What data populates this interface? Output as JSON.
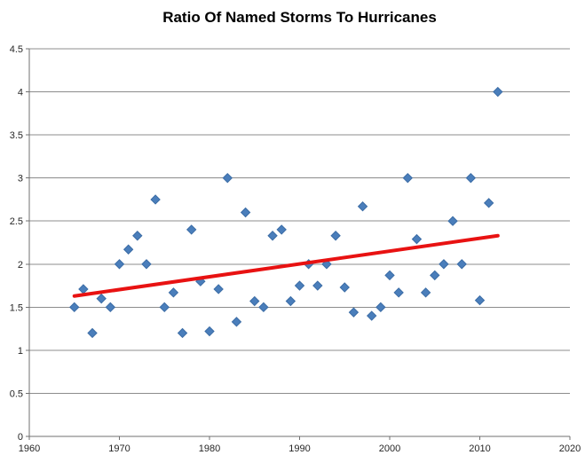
{
  "page": {
    "background": "#FFFFFF"
  },
  "chart_data": {
    "type": "scatter",
    "title": "Ratio Of Named Storms To Hurricanes",
    "xlabel": "",
    "ylabel": "",
    "xlim": [
      1960,
      2020
    ],
    "ylim": [
      0,
      4.5
    ],
    "x_ticks": [
      1960,
      1970,
      1980,
      1990,
      2000,
      2010,
      2020
    ],
    "x_tick_labels": [
      "1960",
      "1970",
      "1980",
      "1990",
      "2000",
      "2010",
      "2020"
    ],
    "y_ticks": [
      0,
      0.5,
      1,
      1.5,
      2,
      2.5,
      3,
      3.5,
      4,
      4.5
    ],
    "y_tick_labels": [
      "0",
      "0.5",
      "1",
      "1.5",
      "2",
      "2.5",
      "3",
      "3.5",
      "4",
      "4.5"
    ],
    "grid": "horizontal-only",
    "legend": "none",
    "marker": "diamond",
    "marker_color": "#4A7EBB",
    "marker_edge_color": "#3B6CA5",
    "marker_size": 10,
    "grid_color": "#8C8C8C",
    "axis_color": "#707070",
    "tick_label_color": "#262626",
    "title_color": "#000000",
    "series": [
      {
        "name": "Named storms to hurricanes ratio",
        "points": [
          [
            1965,
            1.5
          ],
          [
            1966,
            1.71
          ],
          [
            1967,
            1.2
          ],
          [
            1968,
            1.6
          ],
          [
            1969,
            1.5
          ],
          [
            1970,
            2.0
          ],
          [
            1971,
            2.17
          ],
          [
            1972,
            2.33
          ],
          [
            1973,
            2.0
          ],
          [
            1974,
            2.75
          ],
          [
            1975,
            1.5
          ],
          [
            1976,
            1.67
          ],
          [
            1977,
            1.2
          ],
          [
            1978,
            2.4
          ],
          [
            1979,
            1.8
          ],
          [
            1980,
            1.22
          ],
          [
            1981,
            1.71
          ],
          [
            1982,
            3.0
          ],
          [
            1983,
            1.33
          ],
          [
            1984,
            2.6
          ],
          [
            1985,
            1.57
          ],
          [
            1986,
            1.5
          ],
          [
            1987,
            2.33
          ],
          [
            1988,
            2.4
          ],
          [
            1989,
            1.57
          ],
          [
            1990,
            1.75
          ],
          [
            1991,
            2.0
          ],
          [
            1992,
            1.75
          ],
          [
            1993,
            2.0
          ],
          [
            1994,
            2.33
          ],
          [
            1995,
            1.73
          ],
          [
            1996,
            1.44
          ],
          [
            1997,
            2.67
          ],
          [
            1998,
            1.4
          ],
          [
            1999,
            1.5
          ],
          [
            2000,
            1.87
          ],
          [
            2001,
            1.67
          ],
          [
            2002,
            3.0
          ],
          [
            2003,
            2.29
          ],
          [
            2004,
            1.67
          ],
          [
            2005,
            1.87
          ],
          [
            2006,
            2.0
          ],
          [
            2007,
            2.5
          ],
          [
            2008,
            2.0
          ],
          [
            2009,
            3.0
          ],
          [
            2010,
            1.58
          ],
          [
            2011,
            2.71
          ],
          [
            2012,
            4.0
          ]
        ]
      }
    ],
    "trendline": {
      "type": "linear",
      "color": "#E81212",
      "width": 4,
      "x1": 1965,
      "y1": 1.63,
      "x2": 2012,
      "y2": 2.33
    }
  }
}
